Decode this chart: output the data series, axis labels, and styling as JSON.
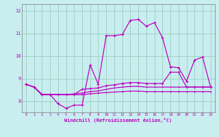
{
  "xlabel": "Windchill (Refroidissement éolien,°C)",
  "background_color": "#c8eef0",
  "grid_color": "#99ccbb",
  "line_color": "#bb00bb",
  "xlim": [
    -0.5,
    23.5
  ],
  "ylim": [
    7.5,
    12.3
  ],
  "yticks": [
    8,
    9,
    10,
    11,
    12
  ],
  "xticks": [
    0,
    1,
    2,
    3,
    4,
    5,
    6,
    7,
    8,
    9,
    10,
    11,
    12,
    13,
    14,
    15,
    16,
    17,
    18,
    19,
    20,
    21,
    22,
    23
  ],
  "hours": [
    0,
    1,
    2,
    3,
    4,
    5,
    6,
    7,
    8,
    9,
    10,
    11,
    12,
    13,
    14,
    15,
    16,
    17,
    18,
    19,
    20,
    21,
    22,
    23
  ],
  "curve1": [
    8.75,
    8.62,
    8.3,
    8.3,
    7.88,
    7.68,
    7.82,
    7.82,
    9.6,
    8.75,
    10.9,
    10.9,
    10.95,
    11.58,
    11.62,
    11.32,
    11.48,
    10.82,
    9.52,
    9.48,
    8.88,
    9.82,
    9.95,
    8.62
  ],
  "curve2": [
    8.75,
    8.62,
    8.3,
    8.3,
    8.3,
    8.3,
    8.3,
    8.52,
    8.55,
    8.58,
    8.68,
    8.72,
    8.78,
    8.82,
    8.82,
    8.78,
    8.78,
    8.78,
    9.28,
    9.28,
    8.62,
    8.62,
    8.62,
    8.62
  ],
  "curve3": [
    8.75,
    8.62,
    8.28,
    8.28,
    8.28,
    8.28,
    8.32,
    8.35,
    8.42,
    8.45,
    8.52,
    8.58,
    8.62,
    8.65,
    8.65,
    8.62,
    8.62,
    8.62,
    8.62,
    8.62,
    8.62,
    8.62,
    8.62,
    8.62
  ],
  "curve4": [
    8.75,
    8.62,
    8.28,
    8.28,
    8.28,
    8.28,
    8.28,
    8.28,
    8.32,
    8.35,
    8.38,
    8.4,
    8.42,
    8.44,
    8.44,
    8.42,
    8.42,
    8.42,
    8.42,
    8.42,
    8.42,
    8.42,
    8.42,
    8.42
  ]
}
